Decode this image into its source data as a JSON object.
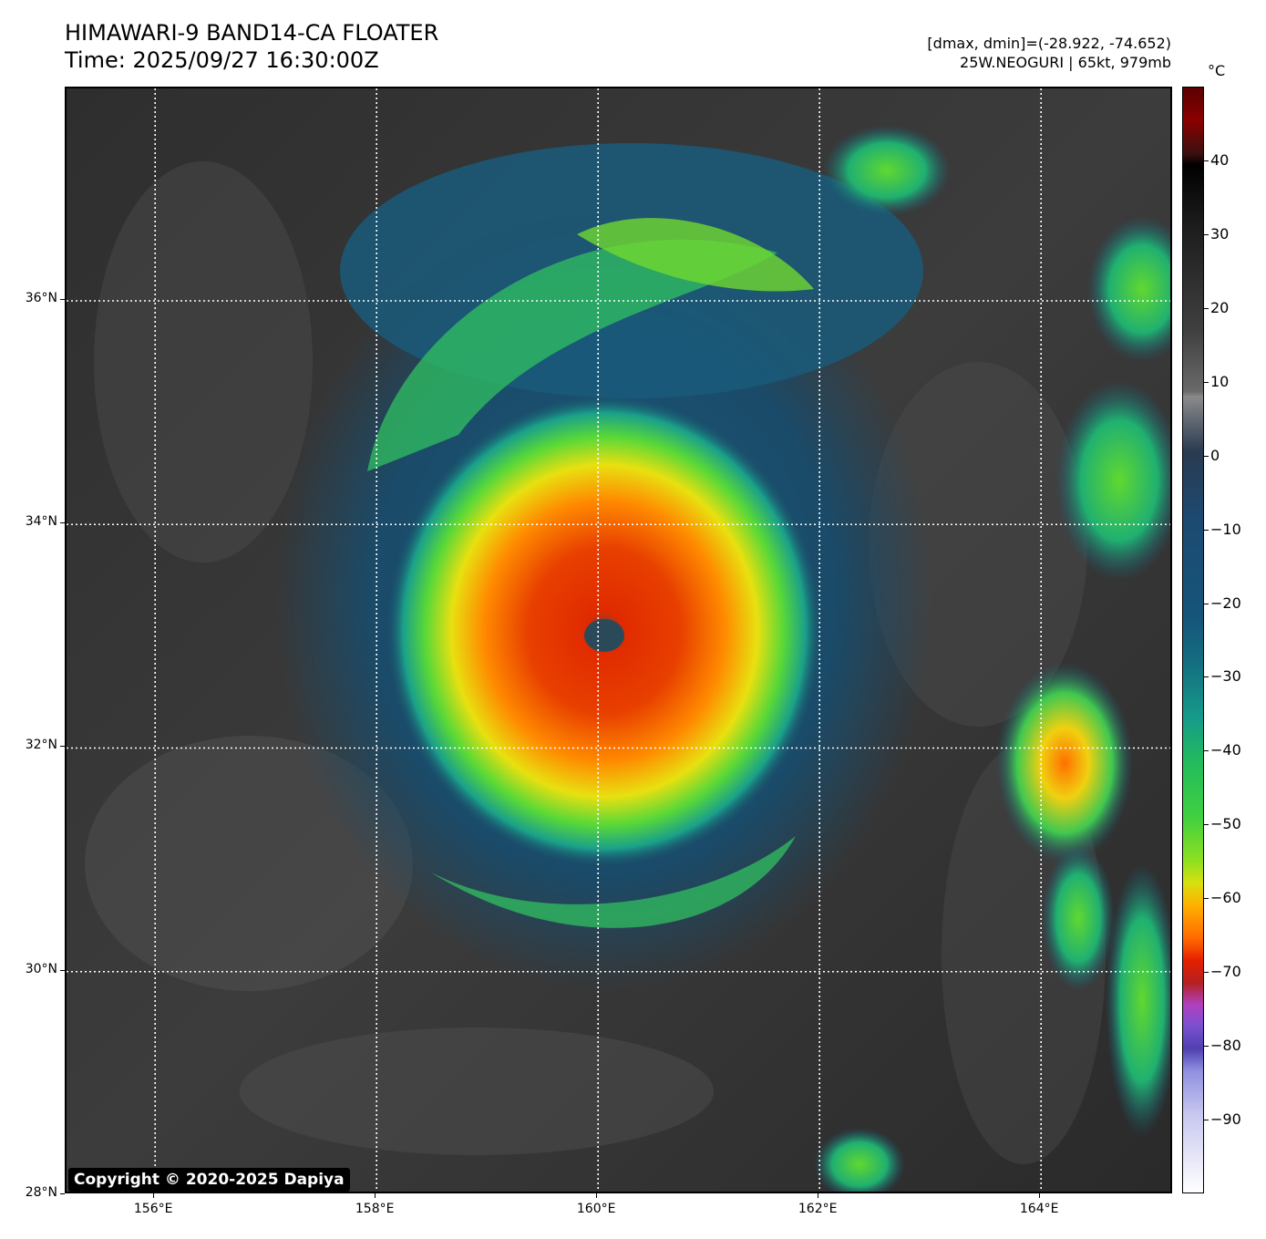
{
  "header": {
    "title_line1": "HIMAWARI-9 BAND14-CA FLOATER",
    "title_line2": "Time: 2025/09/27 16:30:00Z",
    "dminmax": "[dmax, dmin]=(-28.922, -74.652)",
    "storm": "25W.NEOGURI | 65kt, 979mb"
  },
  "map": {
    "lat_labels": [
      "36°N",
      "34°N",
      "32°N",
      "30°N",
      "28°N"
    ],
    "lon_labels": [
      "156°E",
      "158°E",
      "160°E",
      "162°E",
      "164°E"
    ],
    "lat_values": [
      36,
      34,
      32,
      30,
      28
    ],
    "lon_values": [
      156,
      158,
      160,
      162,
      164
    ],
    "lon_range": [
      155.2,
      165.2
    ],
    "lat_range": [
      28,
      37.9
    ],
    "storm_center": {
      "lon": 160.1,
      "lat": 32.9
    }
  },
  "colorbar": {
    "unit": "°C",
    "tick_labels": [
      "40",
      "30",
      "20",
      "10",
      "0",
      "−10",
      "−20",
      "−30",
      "−40",
      "−50",
      "−60",
      "−70",
      "−80",
      "−90"
    ],
    "tick_values": [
      40,
      30,
      20,
      10,
      0,
      -10,
      -20,
      -30,
      -40,
      -50,
      -60,
      -70,
      -80,
      -90
    ],
    "range": [
      -100,
      50
    ]
  },
  "copyright": "Copyright © 2020-2025 Dapiya"
}
